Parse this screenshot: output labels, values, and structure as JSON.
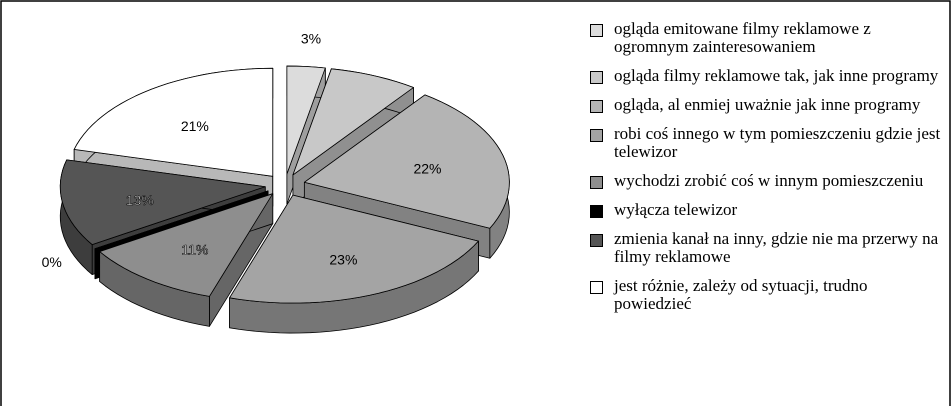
{
  "chart_data": {
    "type": "pie3d",
    "categories": [
      "ogląda emitowane filmy reklamowe z ogromnym zainteresowaniem",
      "ogląda filmy reklamowe tak, jak inne programy",
      "ogląda, al enmiej uważnie jak inne programy",
      "robi coś innego w tym pomieszczeniu gdzie jest telewizor",
      "wychodzi zrobić coś w innym pomieszczeniu",
      "wyłącza telewizor",
      "zmienia kanał na inny, gdzie nie ma przerwy na filmy reklamowe",
      "jest różnie, zależy od sytuacji, trudno powiedzieć"
    ],
    "values": [
      3,
      7,
      22,
      23,
      11,
      0,
      13,
      21
    ],
    "value_labels": [
      "3%",
      null,
      "22%",
      "23%",
      "11%",
      "0%",
      "13%",
      "21%"
    ],
    "colors": [
      "#dcdcdc",
      "#c8c8c8",
      "#b4b4b4",
      "#a4a4a4",
      "#8e8e8e",
      "#000000",
      "#555555",
      "#ffffff"
    ],
    "legend": "right"
  }
}
